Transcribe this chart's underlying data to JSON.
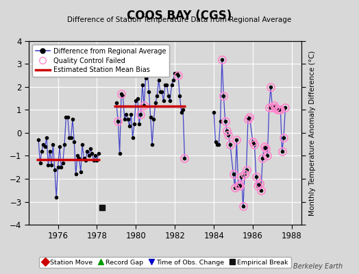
{
  "title": "COOS BAY (CGS)",
  "subtitle": "Difference of Station Temperature Data from Regional Average",
  "ylabel": "Monthly Temperature Anomaly Difference (°C)",
  "xlabel_bottom": "Berkeley Earth",
  "ylim": [
    -4,
    4
  ],
  "xlim": [
    1974.5,
    1988.5
  ],
  "xticks": [
    1976,
    1978,
    1980,
    1982,
    1984,
    1986,
    1988
  ],
  "yticks": [
    -4,
    -3,
    -2,
    -1,
    0,
    1,
    2,
    3,
    4
  ],
  "background_color": "#d8d8d8",
  "plot_bg_color": "#d8d8d8",
  "grid_color": "#ffffff",
  "line_color": "#4444cc",
  "marker_color": "#000000",
  "qc_color": "#ff88cc",
  "bias_color": "#cc0000",
  "time_series": [
    {
      "t": 1975.0,
      "v": -0.3
    },
    {
      "t": 1975.083,
      "v": -1.3
    },
    {
      "t": 1975.167,
      "v": -0.8
    },
    {
      "t": 1975.25,
      "v": -0.5
    },
    {
      "t": 1975.333,
      "v": -0.6
    },
    {
      "t": 1975.417,
      "v": -0.2
    },
    {
      "t": 1975.5,
      "v": -1.4
    },
    {
      "t": 1975.583,
      "v": -0.8
    },
    {
      "t": 1975.667,
      "v": -1.4
    },
    {
      "t": 1975.75,
      "v": -0.5
    },
    {
      "t": 1975.833,
      "v": -1.6
    },
    {
      "t": 1975.917,
      "v": -2.8
    },
    {
      "t": 1976.0,
      "v": -1.5
    },
    {
      "t": 1976.083,
      "v": -0.6
    },
    {
      "t": 1976.167,
      "v": -1.5
    },
    {
      "t": 1976.25,
      "v": -1.3
    },
    {
      "t": 1976.333,
      "v": -0.5
    },
    {
      "t": 1976.417,
      "v": 0.7
    },
    {
      "t": 1976.5,
      "v": 0.7
    },
    {
      "t": 1976.583,
      "v": -0.2
    },
    {
      "t": 1976.667,
      "v": -0.2
    },
    {
      "t": 1976.75,
      "v": 0.6
    },
    {
      "t": 1976.833,
      "v": -0.4
    },
    {
      "t": 1976.917,
      "v": -1.8
    },
    {
      "t": 1977.0,
      "v": -1.0
    },
    {
      "t": 1977.083,
      "v": -1.1
    },
    {
      "t": 1977.167,
      "v": -1.7
    },
    {
      "t": 1977.25,
      "v": -0.5
    },
    {
      "t": 1977.333,
      "v": -1.1
    },
    {
      "t": 1977.417,
      "v": -1.2
    },
    {
      "t": 1977.5,
      "v": -0.8
    },
    {
      "t": 1977.583,
      "v": -1.0
    },
    {
      "t": 1977.667,
      "v": -0.7
    },
    {
      "t": 1977.75,
      "v": -0.9
    },
    {
      "t": 1977.833,
      "v": -1.2
    },
    {
      "t": 1977.917,
      "v": -1.0
    },
    {
      "t": 1978.0,
      "v": -1.2
    },
    {
      "t": 1978.083,
      "v": -0.9
    },
    {
      "t": 1979.0,
      "v": 1.3
    },
    {
      "t": 1979.083,
      "v": 0.5
    },
    {
      "t": 1979.167,
      "v": -0.9
    },
    {
      "t": 1979.25,
      "v": 1.7
    },
    {
      "t": 1979.333,
      "v": 1.6
    },
    {
      "t": 1979.417,
      "v": 0.6
    },
    {
      "t": 1979.5,
      "v": 0.8
    },
    {
      "t": 1979.583,
      "v": 0.6
    },
    {
      "t": 1979.667,
      "v": 0.3
    },
    {
      "t": 1979.75,
      "v": 0.8
    },
    {
      "t": 1979.833,
      "v": -0.2
    },
    {
      "t": 1979.917,
      "v": 0.4
    },
    {
      "t": 1980.0,
      "v": 1.4
    },
    {
      "t": 1980.083,
      "v": 1.5
    },
    {
      "t": 1980.167,
      "v": 0.4
    },
    {
      "t": 1980.25,
      "v": 0.8
    },
    {
      "t": 1980.333,
      "v": 2.1
    },
    {
      "t": 1980.417,
      "v": 1.2
    },
    {
      "t": 1980.5,
      "v": 2.4
    },
    {
      "t": 1980.583,
      "v": 2.9
    },
    {
      "t": 1980.667,
      "v": 1.8
    },
    {
      "t": 1980.75,
      "v": 0.7
    },
    {
      "t": 1980.833,
      "v": -0.5
    },
    {
      "t": 1980.917,
      "v": 0.6
    },
    {
      "t": 1981.0,
      "v": 1.3
    },
    {
      "t": 1981.083,
      "v": 1.6
    },
    {
      "t": 1981.167,
      "v": 2.3
    },
    {
      "t": 1981.25,
      "v": 1.8
    },
    {
      "t": 1981.333,
      "v": 1.8
    },
    {
      "t": 1981.417,
      "v": 1.4
    },
    {
      "t": 1981.5,
      "v": 2.1
    },
    {
      "t": 1981.583,
      "v": 2.1
    },
    {
      "t": 1981.667,
      "v": 1.6
    },
    {
      "t": 1981.75,
      "v": 1.4
    },
    {
      "t": 1981.833,
      "v": 2.1
    },
    {
      "t": 1981.917,
      "v": 2.3
    },
    {
      "t": 1982.0,
      "v": 2.6
    },
    {
      "t": 1982.083,
      "v": 2.6
    },
    {
      "t": 1982.167,
      "v": 2.5
    },
    {
      "t": 1982.25,
      "v": 1.6
    },
    {
      "t": 1982.333,
      "v": 0.9
    },
    {
      "t": 1982.417,
      "v": 1.0
    },
    {
      "t": 1982.5,
      "v": -1.1
    },
    {
      "t": 1984.0,
      "v": 0.9
    },
    {
      "t": 1984.083,
      "v": -0.4
    },
    {
      "t": 1984.167,
      "v": -0.5
    },
    {
      "t": 1984.25,
      "v": -0.5
    },
    {
      "t": 1984.333,
      "v": 0.5
    },
    {
      "t": 1984.417,
      "v": 3.2
    },
    {
      "t": 1984.5,
      "v": 1.6
    },
    {
      "t": 1984.583,
      "v": 0.5
    },
    {
      "t": 1984.667,
      "v": 0.1
    },
    {
      "t": 1984.75,
      "v": -0.1
    },
    {
      "t": 1984.833,
      "v": -0.5
    },
    {
      "t": 1985.0,
      "v": -1.8
    },
    {
      "t": 1985.083,
      "v": -2.4
    },
    {
      "t": 1985.167,
      "v": -0.3
    },
    {
      "t": 1985.25,
      "v": -2.3
    },
    {
      "t": 1985.333,
      "v": -2.3
    },
    {
      "t": 1985.417,
      "v": -1.9
    },
    {
      "t": 1985.5,
      "v": -3.2
    },
    {
      "t": 1985.583,
      "v": -1.8
    },
    {
      "t": 1985.667,
      "v": -1.6
    },
    {
      "t": 1985.75,
      "v": 0.6
    },
    {
      "t": 1985.833,
      "v": 0.7
    },
    {
      "t": 1986.0,
      "v": -0.4
    },
    {
      "t": 1986.083,
      "v": -0.5
    },
    {
      "t": 1986.167,
      "v": -1.9
    },
    {
      "t": 1986.25,
      "v": -2.3
    },
    {
      "t": 1986.333,
      "v": -2.2
    },
    {
      "t": 1986.417,
      "v": -2.5
    },
    {
      "t": 1986.5,
      "v": -1.1
    },
    {
      "t": 1986.583,
      "v": -0.6
    },
    {
      "t": 1986.667,
      "v": -0.7
    },
    {
      "t": 1986.75,
      "v": -1.0
    },
    {
      "t": 1986.833,
      "v": 1.1
    },
    {
      "t": 1986.917,
      "v": 2.0
    },
    {
      "t": 1987.0,
      "v": 1.1
    },
    {
      "t": 1987.083,
      "v": 1.2
    },
    {
      "t": 1987.167,
      "v": 1.1
    },
    {
      "t": 1987.25,
      "v": 1.0
    },
    {
      "t": 1987.333,
      "v": 1.0
    },
    {
      "t": 1987.417,
      "v": 1.0
    },
    {
      "t": 1987.5,
      "v": -0.8
    },
    {
      "t": 1987.583,
      "v": -0.2
    },
    {
      "t": 1987.667,
      "v": 1.1
    }
  ],
  "qc_failed": [
    {
      "t": 1979.083,
      "v": 0.5
    },
    {
      "t": 1979.25,
      "v": 1.7
    },
    {
      "t": 1980.25,
      "v": 0.8
    },
    {
      "t": 1980.417,
      "v": 1.2
    },
    {
      "t": 1982.167,
      "v": 2.5
    },
    {
      "t": 1982.5,
      "v": -1.1
    },
    {
      "t": 1984.417,
      "v": 3.2
    },
    {
      "t": 1984.5,
      "v": 1.6
    },
    {
      "t": 1984.583,
      "v": 0.5
    },
    {
      "t": 1984.667,
      "v": 0.1
    },
    {
      "t": 1984.75,
      "v": -0.1
    },
    {
      "t": 1984.833,
      "v": -0.5
    },
    {
      "t": 1985.0,
      "v": -1.8
    },
    {
      "t": 1985.083,
      "v": -2.4
    },
    {
      "t": 1985.167,
      "v": -0.3
    },
    {
      "t": 1985.25,
      "v": -2.3
    },
    {
      "t": 1985.333,
      "v": -2.3
    },
    {
      "t": 1985.417,
      "v": -1.9
    },
    {
      "t": 1985.5,
      "v": -3.2
    },
    {
      "t": 1985.583,
      "v": -1.8
    },
    {
      "t": 1985.667,
      "v": -1.6
    },
    {
      "t": 1985.75,
      "v": 0.6
    },
    {
      "t": 1985.833,
      "v": 0.7
    },
    {
      "t": 1986.0,
      "v": -0.4
    },
    {
      "t": 1986.083,
      "v": -0.5
    },
    {
      "t": 1986.167,
      "v": -1.9
    },
    {
      "t": 1986.25,
      "v": -2.3
    },
    {
      "t": 1986.333,
      "v": -2.2
    },
    {
      "t": 1986.417,
      "v": -2.5
    },
    {
      "t": 1986.5,
      "v": -1.1
    },
    {
      "t": 1986.583,
      "v": -0.6
    },
    {
      "t": 1986.667,
      "v": -0.7
    },
    {
      "t": 1986.75,
      "v": -1.0
    },
    {
      "t": 1986.833,
      "v": 1.1
    },
    {
      "t": 1986.917,
      "v": 2.0
    },
    {
      "t": 1987.0,
      "v": 1.1
    },
    {
      "t": 1987.083,
      "v": 1.2
    },
    {
      "t": 1987.167,
      "v": 1.1
    },
    {
      "t": 1987.25,
      "v": 1.0
    },
    {
      "t": 1987.333,
      "v": 1.0
    },
    {
      "t": 1987.417,
      "v": 1.0
    },
    {
      "t": 1987.5,
      "v": -0.8
    },
    {
      "t": 1987.583,
      "v": -0.2
    },
    {
      "t": 1987.667,
      "v": 1.1
    }
  ],
  "bias_segments": [
    {
      "t_start": 1974.9,
      "t_end": 1978.15,
      "bias": -1.15
    },
    {
      "t_start": 1978.85,
      "t_end": 1982.55,
      "bias": 1.15
    }
  ],
  "empirical_break": {
    "t": 1978.25,
    "v": -3.25
  },
  "bottom_legend": [
    {
      "label": "Station Move",
      "marker": "D",
      "color": "#cc0000"
    },
    {
      "label": "Record Gap",
      "marker": "^",
      "color": "#009900"
    },
    {
      "label": "Time of Obs. Change",
      "marker": "v",
      "color": "#0000cc"
    },
    {
      "label": "Empirical Break",
      "marker": "s",
      "color": "#111111"
    }
  ]
}
